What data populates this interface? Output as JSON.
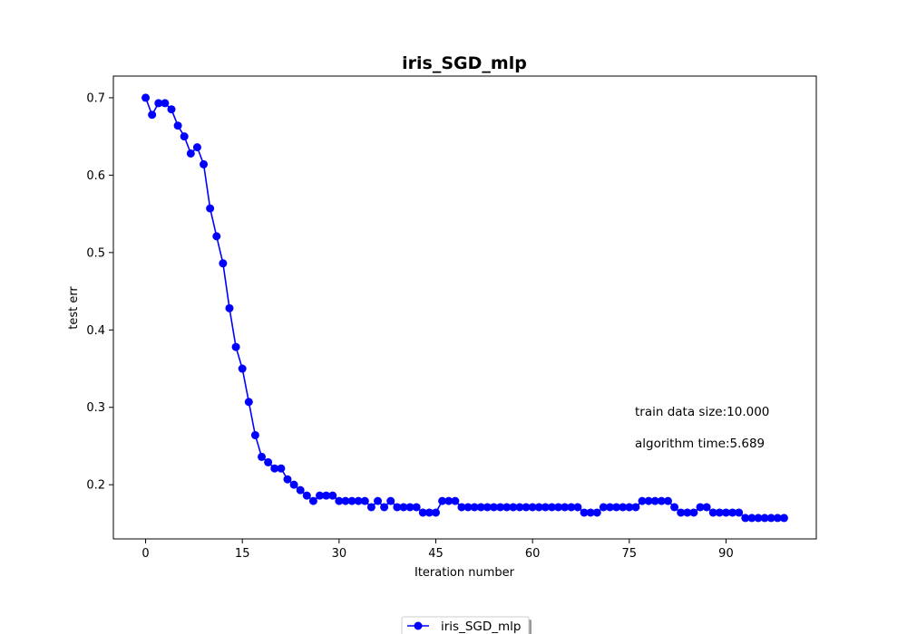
{
  "chart_data": {
    "type": "line",
    "title": "iris_SGD_mlp",
    "xlabel": "Iteration number",
    "ylabel": "test err",
    "xlim": [
      -5,
      104
    ],
    "ylim": [
      0.13,
      0.728
    ],
    "x_ticks": [
      0,
      15,
      30,
      45,
      60,
      75,
      90
    ],
    "x_tick_labels": [
      "0",
      "15",
      "30",
      "45",
      "60",
      "75",
      "90"
    ],
    "y_ticks": [
      0.2,
      0.3,
      0.4,
      0.5,
      0.6,
      0.7
    ],
    "y_tick_labels": [
      "0.2",
      "0.3",
      "0.4",
      "0.5",
      "0.6",
      "0.7"
    ],
    "grid": false,
    "legend_placement": "bottom-center",
    "series": [
      {
        "name": "iris_SGD_mlp",
        "color": "#0000ff",
        "marker": "circle",
        "x": [
          0,
          1,
          2,
          3,
          4,
          5,
          6,
          7,
          8,
          9,
          10,
          11,
          12,
          13,
          14,
          15,
          16,
          17,
          18,
          19,
          20,
          21,
          22,
          23,
          24,
          25,
          26,
          27,
          28,
          29,
          30,
          31,
          32,
          33,
          34,
          35,
          36,
          37,
          38,
          39,
          40,
          41,
          42,
          43,
          44,
          45,
          46,
          47,
          48,
          49,
          50,
          51,
          52,
          53,
          54,
          55,
          56,
          57,
          58,
          59,
          60,
          61,
          62,
          63,
          64,
          65,
          66,
          67,
          68,
          69,
          70,
          71,
          72,
          73,
          74,
          75,
          76,
          77,
          78,
          79,
          80,
          81,
          82,
          83,
          84,
          85,
          86,
          87,
          88,
          89,
          90,
          91,
          92,
          93,
          94,
          95,
          96,
          97,
          98,
          99
        ],
        "values": [
          0.7,
          0.678,
          0.693,
          0.693,
          0.685,
          0.664,
          0.65,
          0.628,
          0.636,
          0.614,
          0.557,
          0.521,
          0.486,
          0.428,
          0.378,
          0.35,
          0.307,
          0.264,
          0.236,
          0.229,
          0.221,
          0.221,
          0.207,
          0.2,
          0.193,
          0.186,
          0.179,
          0.186,
          0.186,
          0.186,
          0.179,
          0.179,
          0.179,
          0.179,
          0.179,
          0.171,
          0.179,
          0.171,
          0.179,
          0.171,
          0.171,
          0.171,
          0.171,
          0.164,
          0.164,
          0.164,
          0.179,
          0.179,
          0.179,
          0.171,
          0.171,
          0.171,
          0.171,
          0.171,
          0.171,
          0.171,
          0.171,
          0.171,
          0.171,
          0.171,
          0.171,
          0.171,
          0.171,
          0.171,
          0.171,
          0.171,
          0.171,
          0.171,
          0.164,
          0.164,
          0.164,
          0.171,
          0.171,
          0.171,
          0.171,
          0.171,
          0.171,
          0.179,
          0.179,
          0.179,
          0.179,
          0.179,
          0.171,
          0.164,
          0.164,
          0.164,
          0.171,
          0.171,
          0.164,
          0.164,
          0.164,
          0.164,
          0.164,
          0.157,
          0.157,
          0.157,
          0.157,
          0.157,
          0.157,
          0.157
        ]
      }
    ],
    "annotations": [
      "train data size:10.000",
      "algorithm time:5.689"
    ]
  }
}
